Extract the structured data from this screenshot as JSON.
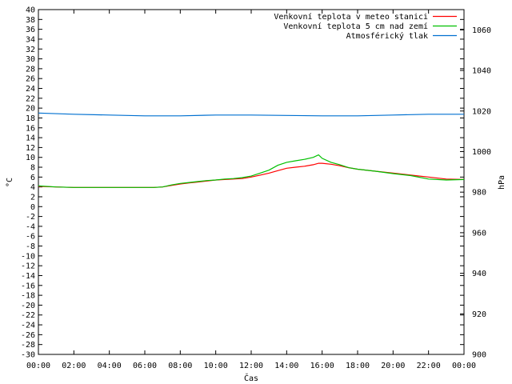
{
  "chart_data": {
    "type": "line",
    "title": "",
    "xlabel": "Čas",
    "ylabel_left": "°C",
    "ylabel_right": "hPa",
    "y_left_range": [
      -30,
      40
    ],
    "y_left_ticks": [
      "-30",
      "-28",
      "-26",
      "-24",
      "-22",
      "-20",
      "-18",
      "-16",
      "-14",
      "-12",
      "-10",
      "-8",
      "-6",
      "-4",
      "-2",
      "0",
      "2",
      "4",
      "6",
      "8",
      "10",
      "12",
      "14",
      "16",
      "18",
      "20",
      "22",
      "24",
      "26",
      "28",
      "30",
      "32",
      "34",
      "36",
      "38",
      "40"
    ],
    "y_right_range": [
      900,
      1070
    ],
    "y_right_ticks": [
      "900",
      "920",
      "940",
      "960",
      "980",
      "1000",
      "1020",
      "1040",
      "1060"
    ],
    "x_range_hours": [
      0,
      24
    ],
    "x_ticks": [
      "00:00",
      "02:00",
      "04:00",
      "06:00",
      "08:00",
      "10:00",
      "12:00",
      "14:00",
      "16:00",
      "18:00",
      "20:00",
      "22:00",
      "00:00"
    ],
    "grid": false,
    "legend_position": "top-right",
    "series": [
      {
        "name": "Venkovní teplota v meteo stanici",
        "color": "#ff0000",
        "axis": "left",
        "x": [
          0,
          1,
          2,
          3,
          4,
          5,
          6,
          6.5,
          7,
          7.5,
          8,
          8.5,
          9,
          9.5,
          10,
          10.5,
          11,
          11.5,
          12,
          12.5,
          13,
          13.5,
          14,
          14.5,
          15,
          15.5,
          15.8,
          16,
          16.5,
          17,
          17.5,
          18,
          19,
          20,
          21,
          22,
          23,
          24
        ],
        "y": [
          4.1,
          4.0,
          3.9,
          3.9,
          3.9,
          3.9,
          3.9,
          3.9,
          4.0,
          4.3,
          4.6,
          4.8,
          5.0,
          5.2,
          5.4,
          5.5,
          5.6,
          5.7,
          6.0,
          6.4,
          6.8,
          7.3,
          7.8,
          8.0,
          8.2,
          8.5,
          8.8,
          8.8,
          8.6,
          8.3,
          7.9,
          7.6,
          7.2,
          6.8,
          6.4,
          6.0,
          5.6,
          5.5
        ]
      },
      {
        "name": "Venkovní teplota 5 cm nad zemí",
        "color": "#00c000",
        "axis": "left",
        "x": [
          0,
          1,
          2,
          3,
          4,
          5,
          6,
          6.5,
          7,
          7.5,
          8,
          8.5,
          9,
          9.5,
          10,
          10.5,
          11,
          11.5,
          12,
          12.5,
          13,
          13.5,
          14,
          14.5,
          15,
          15.5,
          15.8,
          16,
          16.5,
          17,
          17.5,
          18,
          19,
          20,
          21,
          22,
          23,
          24
        ],
        "y": [
          4.2,
          4.0,
          3.9,
          3.9,
          3.9,
          3.9,
          3.9,
          3.9,
          4.0,
          4.4,
          4.7,
          4.9,
          5.1,
          5.3,
          5.4,
          5.6,
          5.7,
          5.9,
          6.2,
          6.8,
          7.4,
          8.4,
          9.0,
          9.3,
          9.6,
          10.0,
          10.5,
          9.8,
          9.0,
          8.5,
          7.9,
          7.6,
          7.2,
          6.7,
          6.3,
          5.6,
          5.4,
          5.5
        ]
      },
      {
        "name": "Atmosférický tlak",
        "color": "#0070d0",
        "axis": "right",
        "x": [
          0,
          2,
          4,
          6,
          8,
          10,
          12,
          14,
          16,
          18,
          20,
          22,
          24
        ],
        "y": [
          1019.0,
          1018.4,
          1018.0,
          1017.6,
          1017.6,
          1018.0,
          1018.0,
          1017.8,
          1017.6,
          1017.6,
          1018.0,
          1018.4,
          1018.4
        ]
      }
    ]
  }
}
